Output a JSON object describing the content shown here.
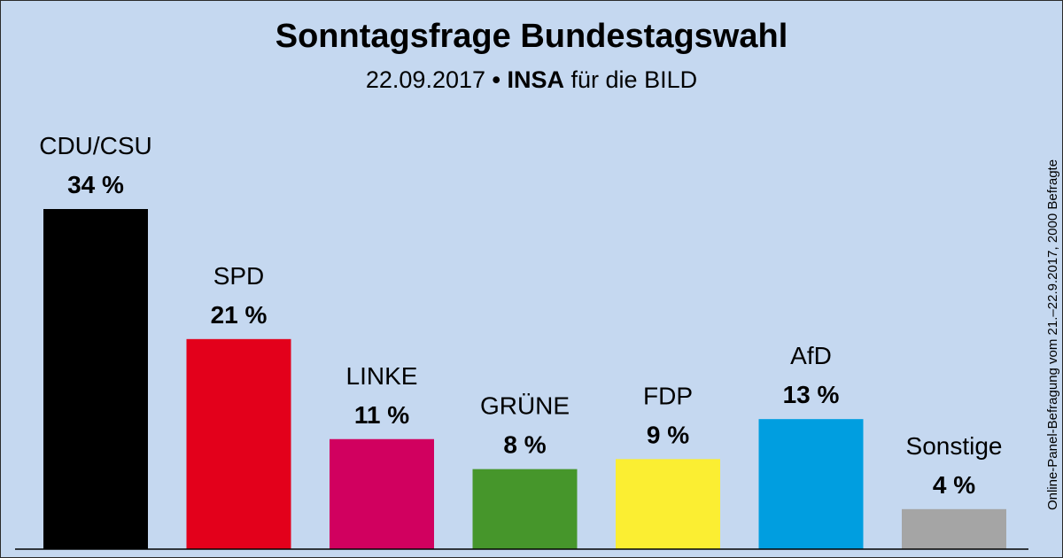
{
  "colors": {
    "background": "#c5d8f0",
    "baseline": "#000000"
  },
  "chart_data": {
    "type": "bar",
    "title": "Sonntagsfrage Bundestagswahl",
    "subtitle": {
      "date": "22.09.2017",
      "separator": "•",
      "institute": "INSA",
      "client": "für die BILD"
    },
    "source_note": "Online-Panel-Befragung vom 21.–22.9.2017, 2000 Befragte",
    "xlabel": "",
    "ylabel": "",
    "ylim": [
      0,
      34
    ],
    "grid": false,
    "categories": [
      "CDU/CSU",
      "SPD",
      "LINKE",
      "GRÜNE",
      "FDP",
      "AfD",
      "Sonstige"
    ],
    "values": [
      34,
      21,
      11,
      8,
      9,
      13,
      4
    ],
    "value_labels": [
      "34 %",
      "21 %",
      "11 %",
      "8 %",
      "9 %",
      "13 %",
      "4 %"
    ],
    "colors": [
      "#000000",
      "#e3001b",
      "#d1005f",
      "#46962b",
      "#fbee32",
      "#009ee0",
      "#a5a5a5"
    ]
  }
}
